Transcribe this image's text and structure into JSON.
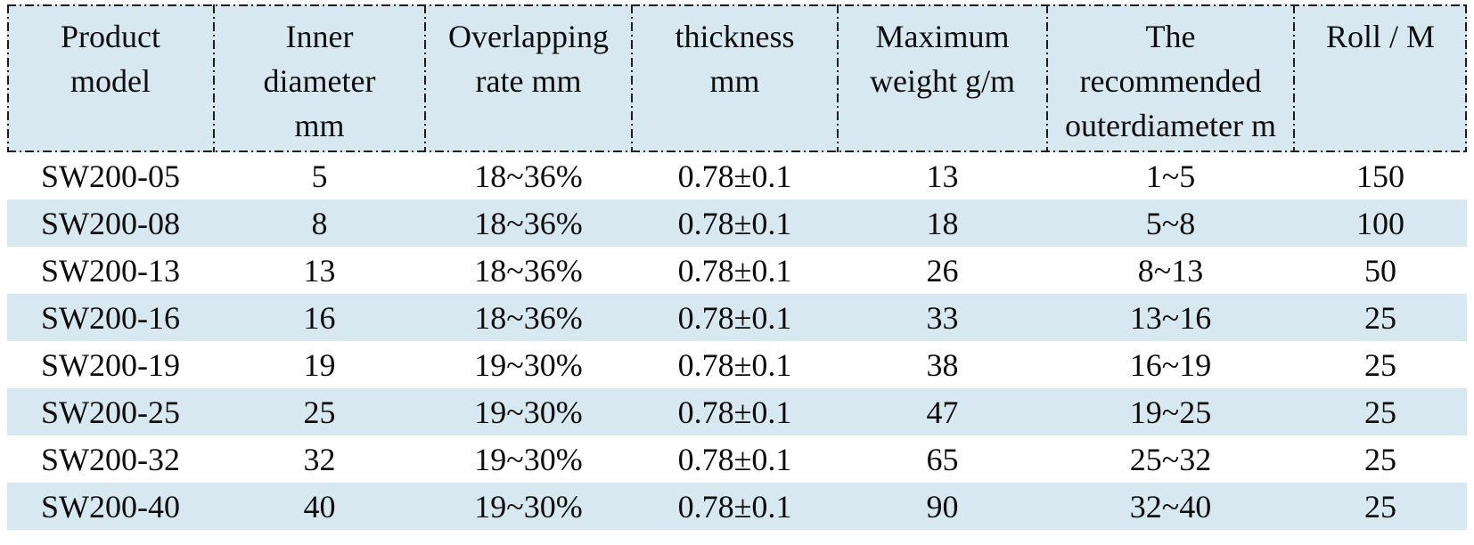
{
  "table": {
    "columns": [
      {
        "label": "Product model",
        "lines": [
          "Product",
          "model"
        ]
      },
      {
        "label": "Inner diameter mm",
        "lines": [
          "Inner",
          "diameter",
          "mm"
        ]
      },
      {
        "label": "Overlapping rate mm",
        "lines": [
          "Overlapping",
          "rate mm"
        ]
      },
      {
        "label": "thickness mm",
        "lines": [
          "thickness",
          "mm"
        ]
      },
      {
        "label": "Maximum weight g/m",
        "lines": [
          "Maximum",
          "weight g/m"
        ]
      },
      {
        "label": "The recommended outerdiameter m",
        "lines": [
          "The",
          "recommended",
          "outerdiameter m"
        ]
      },
      {
        "label": "Roll / M",
        "lines": [
          "Roll / M"
        ]
      }
    ],
    "rows": [
      [
        "SW200-05",
        "5",
        "18~36%",
        "0.78±0.1",
        "13",
        "1~5",
        "150"
      ],
      [
        "SW200-08",
        "8",
        "18~36%",
        "0.78±0.1",
        "18",
        "5~8",
        "100"
      ],
      [
        "SW200-13",
        "13",
        "18~36%",
        "0.78±0.1",
        "26",
        "8~13",
        "50"
      ],
      [
        "SW200-16",
        "16",
        "18~36%",
        "0.78±0.1",
        "33",
        "13~16",
        "25"
      ],
      [
        "SW200-19",
        "19",
        "19~30%",
        "0.78±0.1",
        "38",
        "16~19",
        "25"
      ],
      [
        "SW200-25",
        "25",
        "19~30%",
        "0.78±0.1",
        "47",
        "19~25",
        "25"
      ],
      [
        "SW200-32",
        "32",
        "19~30%",
        "0.78±0.1",
        "65",
        "25~32",
        "25"
      ],
      [
        "SW200-40",
        "40",
        "19~30%",
        "0.78±0.1",
        "90",
        "32~40",
        "25"
      ]
    ]
  },
  "colors": {
    "stripe_blue": "#d7e8f0",
    "header_blue": "#d7e8f0",
    "border_black": "#1c1c1c",
    "text": "#0d0d0d"
  }
}
